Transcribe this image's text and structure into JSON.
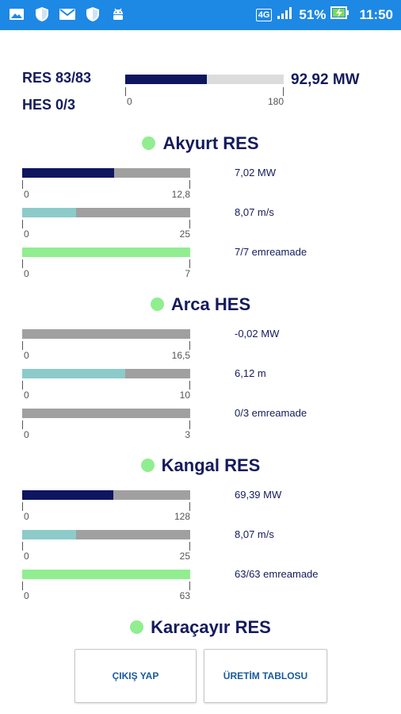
{
  "status_bar": {
    "network": "4G",
    "battery_percent": "51%",
    "time": "11:50",
    "left_icons": [
      "gallery-icon",
      "shield-icon",
      "mail-icon",
      "shield-icon",
      "android-icon"
    ]
  },
  "summary": {
    "res_label": "RES 83/83",
    "hes_label": "HES 0/3",
    "total": "92,92 MW",
    "bar_fraction": 0.516,
    "scale_min": "0",
    "scale_max": "180"
  },
  "sections": [
    {
      "title": "Akyurt RES",
      "rows": [
        {
          "value": "7,02 MW",
          "min": "0",
          "max": "12,8",
          "fraction": 0.548,
          "fill_color": "#0e1660"
        },
        {
          "value": "8,07 m/s",
          "min": "0",
          "max": "25",
          "fraction": 0.323,
          "fill_color": "#8ccbc9"
        },
        {
          "value": "7/7 emreamade",
          "min": "0",
          "max": "7",
          "fraction": 1.0,
          "fill_color": "#90ee90"
        }
      ]
    },
    {
      "title": "Arca HES",
      "rows": [
        {
          "value": "-0,02 MW",
          "min": "0",
          "max": "16,5",
          "fraction": 0.0,
          "fill_color": "#0e1660"
        },
        {
          "value": "6,12 m",
          "min": "0",
          "max": "10",
          "fraction": 0.612,
          "fill_color": "#8ccbc9"
        },
        {
          "value": "0/3 emreamade",
          "min": "0",
          "max": "3",
          "fraction": 0.0,
          "fill_color": "#90ee90"
        }
      ]
    },
    {
      "title": "Kangal RES",
      "rows": [
        {
          "value": "69,39 MW",
          "min": "0",
          "max": "128",
          "fraction": 0.542,
          "fill_color": "#0e1660"
        },
        {
          "value": "8,07 m/s",
          "min": "0",
          "max": "25",
          "fraction": 0.323,
          "fill_color": "#8ccbc9"
        },
        {
          "value": "63/63 emreamade",
          "min": "0",
          "max": "63",
          "fraction": 1.0,
          "fill_color": "#90ee90"
        }
      ]
    },
    {
      "title": "Karaçayır RES",
      "rows": []
    }
  ],
  "buttons": {
    "logout": "ÇIKIŞ YAP",
    "production_table": "ÜRETİM TABLOSU"
  },
  "colors": {
    "status_bar": "#1e88e5",
    "title_text": "#141b5c",
    "section_dot": "#90ee90",
    "bar_track": "#a0a0a0"
  }
}
